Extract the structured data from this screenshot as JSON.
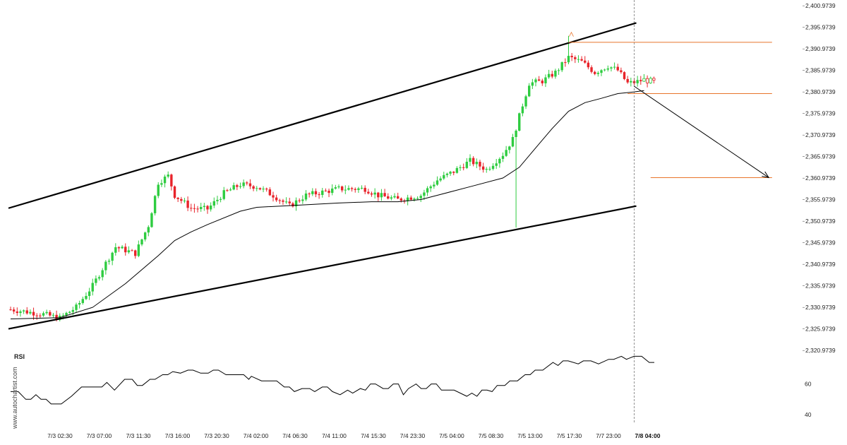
{
  "watermark": "www.autochartist.com",
  "chart_data": {
    "type": "candlestick",
    "title": "",
    "price_range": [
      2321.5,
      2401.5
    ],
    "y_ticks": [
      "2,400.9739",
      "2,395.9739",
      "2,390.9739",
      "2,385.9739",
      "2,380.9739",
      "2,375.9739",
      "2,370.9739",
      "2,365.9739",
      "2,360.9739",
      "2,355.9739",
      "2,350.9739",
      "2,345.9739",
      "2,340.9739",
      "2,335.9739",
      "2,330.9739",
      "2,325.9739",
      "2,320.9739"
    ],
    "y_tick_values": [
      2400.9739,
      2395.9739,
      2390.9739,
      2385.9739,
      2380.9739,
      2375.9739,
      2370.9739,
      2365.9739,
      2360.9739,
      2355.9739,
      2350.9739,
      2345.9739,
      2340.9739,
      2335.9739,
      2330.9739,
      2325.9739,
      2320.9739
    ],
    "x_ticks": [
      "7/3 02:30",
      "7/3 07:00",
      "7/3 11:30",
      "7/3 16:00",
      "7/3 20:30",
      "7/4 02:00",
      "7/4 06:30",
      "7/4 11:00",
      "7/4 15:30",
      "7/4 23:30",
      "7/5 04:00",
      "7/5 08:30",
      "7/5 13:00",
      "7/5 17:30",
      "7/7 23:00",
      "7/8 04:00"
    ],
    "x_tick_index": [
      10,
      22,
      34,
      46,
      58,
      70,
      82,
      94,
      106,
      118,
      130,
      142,
      154,
      166,
      178,
      190
    ],
    "highlight_tick": "7/8 04:00",
    "total_bars": 197,
    "current_bar_index": 190,
    "close_path": [
      [
        0,
        2330.5
      ],
      [
        10,
        2329.4
      ],
      [
        15,
        2328.5
      ],
      [
        20,
        2331.0
      ],
      [
        25,
        2336.0
      ],
      [
        28,
        2340.0
      ],
      [
        32,
        2345.0
      ],
      [
        38,
        2343.5
      ],
      [
        42,
        2350.0
      ],
      [
        45,
        2360.0
      ],
      [
        48,
        2361.5
      ],
      [
        50,
        2357.0
      ],
      [
        55,
        2354.0
      ],
      [
        60,
        2353.8
      ],
      [
        65,
        2357.5
      ],
      [
        70,
        2359.5
      ],
      [
        75,
        2359.0
      ],
      [
        80,
        2357.0
      ],
      [
        85,
        2354.5
      ],
      [
        90,
        2357.0
      ],
      [
        100,
        2358.5
      ],
      [
        108,
        2358.5
      ],
      [
        112,
        2357.0
      ],
      [
        118,
        2356.0
      ],
      [
        125,
        2357.0
      ],
      [
        130,
        2360.5
      ],
      [
        135,
        2362.5
      ],
      [
        140,
        2365.0
      ],
      [
        145,
        2363.0
      ],
      [
        150,
        2366.5
      ],
      [
        153,
        2370.0
      ],
      [
        156,
        2378.0
      ],
      [
        158,
        2383.0
      ],
      [
        162,
        2383.5
      ],
      [
        166,
        2385.5
      ],
      [
        170,
        2389.0
      ],
      [
        174,
        2388.0
      ],
      [
        178,
        2385.5
      ],
      [
        182,
        2387.0
      ],
      [
        185,
        2386.0
      ],
      [
        188,
        2383.0
      ],
      [
        190,
        2383.2
      ],
      [
        193,
        2383.8
      ],
      [
        196,
        2383.3
      ]
    ],
    "spikes": [
      {
        "index": 154,
        "low": 2349.5
      },
      {
        "index": 170,
        "high": 2394.0
      }
    ],
    "moving_average": [
      [
        0,
        2328.3
      ],
      [
        15,
        2328.6
      ],
      [
        25,
        2331.0
      ],
      [
        35,
        2336.5
      ],
      [
        45,
        2343.0
      ],
      [
        50,
        2346.5
      ],
      [
        55,
        2348.5
      ],
      [
        60,
        2350.2
      ],
      [
        70,
        2353.3
      ],
      [
        75,
        2354.2
      ],
      [
        85,
        2354.6
      ],
      [
        100,
        2355.2
      ],
      [
        110,
        2355.5
      ],
      [
        118,
        2355.5
      ],
      [
        125,
        2356.0
      ],
      [
        130,
        2357.0
      ],
      [
        140,
        2359.0
      ],
      [
        150,
        2361.0
      ],
      [
        155,
        2363.5
      ],
      [
        160,
        2368.0
      ],
      [
        165,
        2372.5
      ],
      [
        170,
        2376.5
      ],
      [
        175,
        2378.5
      ],
      [
        180,
        2379.5
      ],
      [
        185,
        2380.6
      ],
      [
        190,
        2381.0
      ],
      [
        193,
        2381.3
      ]
    ],
    "channel_upper": {
      "start": [
        0,
        2354.0
      ],
      "end": [
        190,
        2397.0
      ]
    },
    "channel_lower": {
      "start": [
        0,
        2326.0
      ],
      "end": [
        190,
        2354.5
      ]
    },
    "horizontal_levels": [
      {
        "y": 2392.5,
        "from_index": 170,
        "to_index": 232
      },
      {
        "y": 2380.6,
        "from_index": 188,
        "to_index": 232
      },
      {
        "y": 2361.1,
        "from_index": 195,
        "to_index": 232
      }
    ],
    "forecast_arrow": {
      "from": [
        190,
        2382.3
      ],
      "to": [
        231,
        2361.1
      ]
    },
    "colors": {
      "up": "#2ecc40",
      "down": "#e8232a",
      "pattern": "#000000",
      "level": "#e8742a",
      "grid_vline": "#777777"
    },
    "rsi": {
      "title": "RSI",
      "y_ticks": [
        "60",
        "40"
      ],
      "y_tick_values": [
        60,
        40
      ],
      "range": [
        35,
        80
      ],
      "values": [
        [
          0,
          55
        ],
        [
          3,
          55
        ],
        [
          6,
          50
        ],
        [
          8,
          50
        ],
        [
          10,
          53
        ],
        [
          12,
          50
        ],
        [
          14,
          50
        ],
        [
          16,
          47
        ],
        [
          20,
          47
        ],
        [
          24,
          52
        ],
        [
          28,
          58
        ],
        [
          36,
          58
        ],
        [
          38,
          61
        ],
        [
          41,
          56
        ],
        [
          45,
          63
        ],
        [
          48,
          63
        ],
        [
          50,
          59
        ],
        [
          52,
          59
        ],
        [
          55,
          63
        ],
        [
          57,
          63
        ],
        [
          60,
          66
        ],
        [
          62,
          66
        ],
        [
          64,
          68
        ],
        [
          67,
          67
        ],
        [
          70,
          69
        ],
        [
          72,
          69
        ],
        [
          75,
          67
        ],
        [
          78,
          67
        ],
        [
          80,
          69
        ],
        [
          82,
          69
        ],
        [
          85,
          66
        ],
        [
          92,
          66
        ],
        [
          94,
          63
        ],
        [
          95,
          65
        ],
        [
          99,
          62
        ],
        [
          105,
          62
        ],
        [
          108,
          58
        ],
        [
          110,
          58
        ],
        [
          112,
          55
        ],
        [
          115,
          57
        ],
        [
          118,
          57
        ],
        [
          120,
          55
        ],
        [
          123,
          58
        ],
        [
          125,
          58
        ],
        [
          127,
          55
        ],
        [
          130,
          53
        ],
        [
          133,
          56
        ],
        [
          135,
          54
        ],
        [
          138,
          57
        ],
        [
          140,
          56
        ],
        [
          142,
          60
        ],
        [
          144,
          60
        ],
        [
          147,
          57
        ],
        [
          149,
          57
        ],
        [
          151,
          60
        ],
        [
          153,
          60
        ],
        [
          155,
          53
        ],
        [
          157,
          57
        ],
        [
          160,
          60
        ],
        [
          162,
          57
        ],
        [
          164,
          57
        ],
        [
          166,
          60
        ],
        [
          168,
          60
        ],
        [
          170,
          56
        ],
        [
          175,
          56
        ],
        [
          180,
          52
        ],
        [
          182,
          54
        ],
        [
          184,
          52
        ],
        [
          186,
          56
        ],
        [
          188,
          56
        ],
        [
          190,
          55
        ],
        [
          192,
          59
        ],
        [
          195,
          59
        ],
        [
          197,
          62
        ],
        [
          200,
          62
        ],
        [
          203,
          66
        ],
        [
          205,
          66
        ],
        [
          207,
          69
        ],
        [
          210,
          69
        ],
        [
          214,
          74
        ],
        [
          216,
          72
        ],
        [
          218,
          75
        ],
        [
          220,
          75
        ],
        [
          224,
          73
        ],
        [
          226,
          75
        ],
        [
          229,
          75
        ],
        [
          232,
          73
        ],
        [
          236,
          76
        ],
        [
          238,
          76
        ],
        [
          241,
          78
        ],
        [
          243,
          76
        ],
        [
          246,
          78
        ],
        [
          249,
          78
        ],
        [
          252,
          74
        ],
        [
          254,
          74
        ]
      ]
    }
  }
}
